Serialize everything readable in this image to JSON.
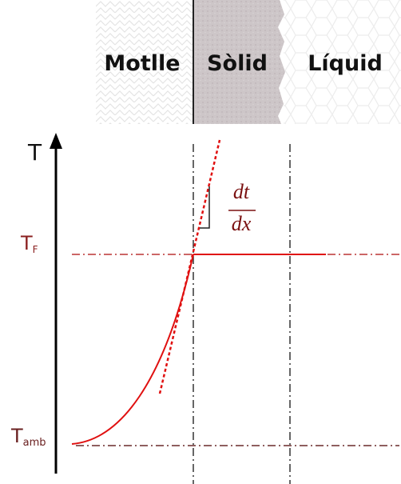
{
  "regions": [
    {
      "label": "Motlle"
    },
    {
      "label": "Sòlid"
    },
    {
      "label": "Líquid"
    }
  ],
  "axis": {
    "label": "T"
  },
  "levels": [
    {
      "symbol": "T",
      "subscript": "F"
    },
    {
      "symbol": "T",
      "subscript": "amb"
    }
  ],
  "gradient": {
    "numerator": "dt",
    "denominator": "dx"
  }
}
